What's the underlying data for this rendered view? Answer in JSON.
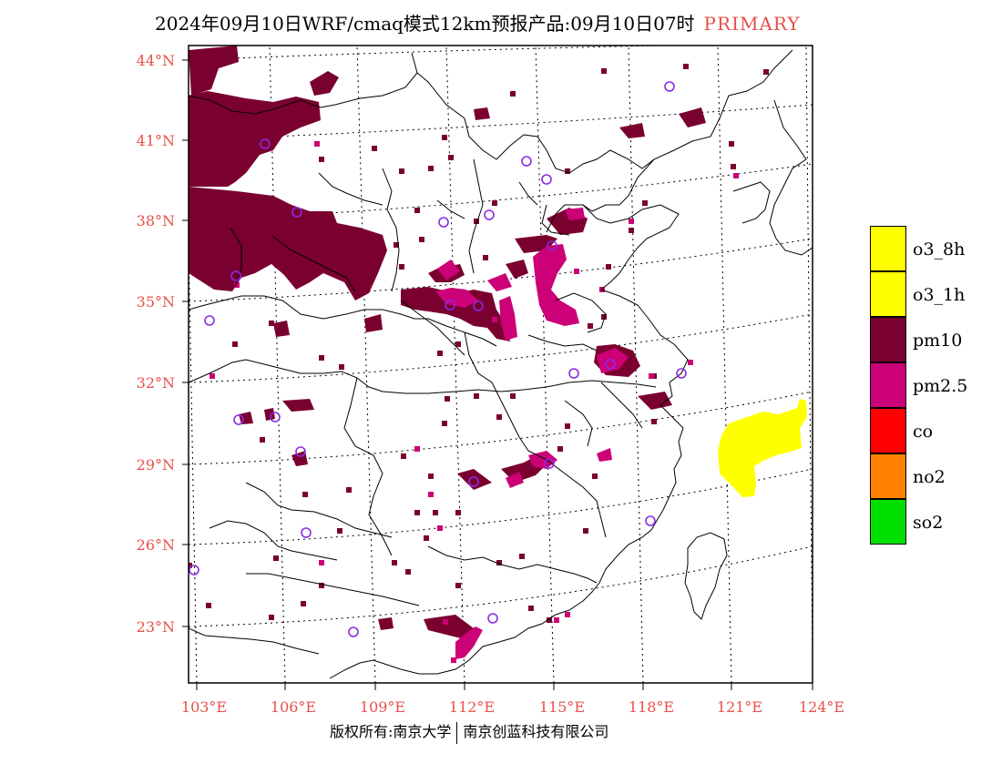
{
  "title": {
    "text": "2024年09月10日WRF/cmaq模式12km预报产品:09月10日07时",
    "tag": "PRIMARY"
  },
  "colors": {
    "o3_8h": "#ffff00",
    "o3_1h": "#ffff00",
    "pm10": "#7a0030",
    "pm2_5": "#cc0077",
    "co": "#ff0000",
    "no2": "#ff8000",
    "so2": "#00e000",
    "station_marker": "#8a2be2",
    "axis_label": "#e8504a"
  },
  "lat_labels": [
    "44°N",
    "41°N",
    "38°N",
    "35°N",
    "32°N",
    "29°N",
    "26°N",
    "23°N"
  ],
  "lon_labels": [
    "103°E",
    "106°E",
    "109°E",
    "112°E",
    "115°E",
    "118°E",
    "121°E",
    "124°E"
  ],
  "legend": [
    {
      "label": "o3_8h",
      "color": "#ffff00"
    },
    {
      "label": "o3_1h",
      "color": "#ffff00"
    },
    {
      "label": "pm10",
      "color": "#7a0030"
    },
    {
      "label": "pm2.5",
      "color": "#cc0077"
    },
    {
      "label": "co",
      "color": "#ff0000"
    },
    {
      "label": "no2",
      "color": "#ff8000"
    },
    {
      "label": "so2",
      "color": "#00e000"
    }
  ],
  "footer": {
    "left": "版权所有:南京大学",
    "right": "南京创蓝科技有限公司"
  }
}
